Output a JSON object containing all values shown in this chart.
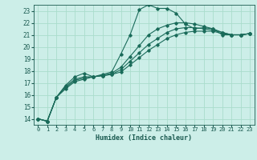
{
  "bg_color": "#cceee8",
  "grid_color": "#aaddcc",
  "line_color": "#1a6b5a",
  "marker_color": "#1a6b5a",
  "xlabel": "Humidex (Indice chaleur)",
  "xlim": [
    -0.5,
    23.5
  ],
  "ylim": [
    13.5,
    23.5
  ],
  "yticks": [
    14,
    15,
    16,
    17,
    18,
    19,
    20,
    21,
    22,
    23
  ],
  "xticks": [
    0,
    1,
    2,
    3,
    4,
    5,
    6,
    7,
    8,
    9,
    10,
    11,
    12,
    13,
    14,
    15,
    16,
    17,
    18,
    19,
    20,
    21,
    22,
    23
  ],
  "series": [
    {
      "x": [
        0,
        1,
        2,
        3,
        4,
        5,
        6,
        7,
        8,
        9,
        10,
        11,
        12,
        13,
        14,
        15,
        16,
        17,
        18,
        19,
        20,
        21,
        22,
        23
      ],
      "y": [
        14.0,
        13.8,
        15.8,
        16.8,
        17.5,
        17.8,
        17.5,
        17.7,
        17.9,
        19.4,
        21.0,
        23.1,
        23.5,
        23.2,
        23.2,
        22.8,
        21.9,
        21.5,
        21.6,
        21.5,
        21.0,
        21.0,
        21.0,
        21.1
      ]
    },
    {
      "x": [
        0,
        1,
        2,
        3,
        4,
        5,
        6,
        7,
        8,
        9,
        10,
        11,
        12,
        13,
        14,
        15,
        16,
        17,
        18,
        19,
        20,
        21,
        22,
        23
      ],
      "y": [
        14.0,
        13.8,
        15.8,
        16.7,
        17.3,
        17.5,
        17.5,
        17.6,
        17.8,
        18.3,
        19.2,
        20.1,
        21.0,
        21.5,
        21.8,
        22.0,
        22.0,
        21.9,
        21.7,
        21.5,
        21.2,
        21.0,
        21.0,
        21.1
      ]
    },
    {
      "x": [
        0,
        1,
        2,
        3,
        4,
        5,
        6,
        7,
        8,
        9,
        10,
        11,
        12,
        13,
        14,
        15,
        16,
        17,
        18,
        19,
        20,
        21,
        22,
        23
      ],
      "y": [
        14.0,
        13.8,
        15.8,
        16.6,
        17.2,
        17.4,
        17.5,
        17.6,
        17.7,
        18.1,
        18.8,
        19.5,
        20.2,
        20.7,
        21.2,
        21.5,
        21.6,
        21.6,
        21.5,
        21.4,
        21.2,
        21.0,
        21.0,
        21.1
      ]
    },
    {
      "x": [
        0,
        1,
        2,
        3,
        4,
        5,
        6,
        7,
        8,
        9,
        10,
        11,
        12,
        13,
        14,
        15,
        16,
        17,
        18,
        19,
        20,
        21,
        22,
        23
      ],
      "y": [
        14.0,
        13.8,
        15.8,
        16.5,
        17.1,
        17.3,
        17.5,
        17.6,
        17.7,
        17.9,
        18.5,
        19.1,
        19.7,
        20.2,
        20.7,
        21.0,
        21.2,
        21.3,
        21.3,
        21.3,
        21.1,
        21.0,
        21.0,
        21.1
      ]
    }
  ]
}
